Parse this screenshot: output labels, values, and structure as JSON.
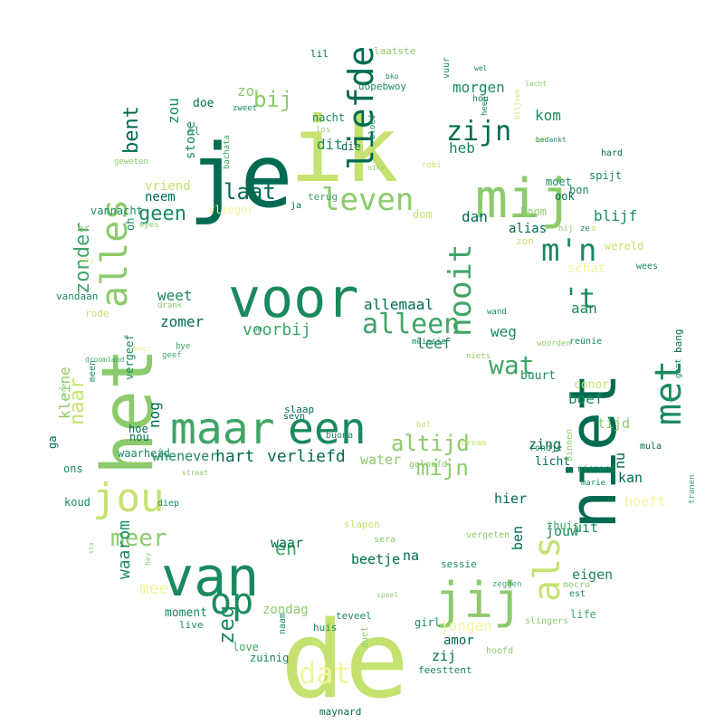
{
  "palette": {
    "darkest": "#006b51",
    "dark": "#1a8a5e",
    "mid": "#3fa567",
    "light": "#8ccb6c",
    "pale": "#c5e271",
    "palest": "#f0f59a"
  },
  "words": [
    {
      "text": "de",
      "color": "pale"
    },
    {
      "text": "ik",
      "color": "pale"
    },
    {
      "text": "je",
      "color": "darkest"
    },
    {
      "text": "het",
      "color": "light"
    },
    {
      "text": "niet",
      "color": "darkest"
    },
    {
      "text": "voor",
      "color": "dark"
    },
    {
      "text": "van",
      "color": "dark"
    },
    {
      "text": "mij",
      "color": "light"
    },
    {
      "text": "jij",
      "color": "light"
    },
    {
      "text": "een",
      "color": "dark"
    },
    {
      "text": "maar",
      "color": "mid"
    },
    {
      "text": "jou",
      "color": "pale"
    },
    {
      "text": "op",
      "color": "dark"
    },
    {
      "text": "alles",
      "color": "light"
    },
    {
      "text": "met",
      "color": "dark"
    },
    {
      "text": "als",
      "color": "pale"
    },
    {
      "text": "leven",
      "color": "light"
    },
    {
      "text": "liefde",
      "color": "darkest"
    },
    {
      "text": "zijn",
      "color": "darkest"
    },
    {
      "text": "m'n",
      "color": "dark"
    },
    {
      "text": "dat",
      "color": "palest"
    },
    {
      "text": "alleen",
      "color": "mid"
    },
    {
      "text": "nooit",
      "color": "mid"
    },
    {
      "text": "'t",
      "color": "dark"
    },
    {
      "text": "wat",
      "color": "mid"
    },
    {
      "text": "laat",
      "color": "darkest"
    },
    {
      "text": "mijn",
      "color": "light"
    },
    {
      "text": "altijd",
      "color": "light"
    },
    {
      "text": "meer",
      "color": "light"
    },
    {
      "text": "geen",
      "color": "dark"
    },
    {
      "text": "bent",
      "color": "darkest"
    },
    {
      "text": "bij",
      "color": "light"
    },
    {
      "text": "naar",
      "color": "pale"
    },
    {
      "text": "zonder",
      "color": "mid"
    },
    {
      "text": "zeg",
      "color": "dark"
    },
    {
      "text": "en",
      "color": "mid"
    },
    {
      "text": "mee",
      "color": "palest"
    },
    {
      "text": "hart",
      "color": "darkest"
    },
    {
      "text": "verliefd",
      "color": "darkest"
    },
    {
      "text": "voorbij",
      "color": "mid"
    },
    {
      "text": "jongen",
      "color": "palest"
    },
    {
      "text": "waarom",
      "color": "dark"
    },
    {
      "text": "dan",
      "color": "darkest"
    },
    {
      "text": "blijf",
      "color": "dark"
    },
    {
      "text": "heb",
      "color": "dark"
    },
    {
      "text": "dit",
      "color": "dark"
    },
    {
      "text": "zo",
      "color": "light"
    },
    {
      "text": "morgen",
      "color": "dark"
    },
    {
      "text": "kom",
      "color": "dark"
    },
    {
      "text": "weg",
      "color": "dark"
    },
    {
      "text": "leef",
      "color": "dark"
    },
    {
      "text": "boef",
      "color": "dark"
    },
    {
      "text": "aan",
      "color": "dark"
    },
    {
      "text": "allemaal",
      "color": "darkest"
    },
    {
      "text": "weet",
      "color": "dark"
    },
    {
      "text": "zomer",
      "color": "darkest"
    },
    {
      "text": "kleine",
      "color": "light"
    },
    {
      "text": "nog",
      "color": "darkest"
    },
    {
      "text": "whenever",
      "color": "dark"
    },
    {
      "text": "water",
      "color": "light"
    },
    {
      "text": "hier",
      "color": "darkest"
    },
    {
      "text": "ben",
      "color": "darkest"
    },
    {
      "text": "jouw",
      "color": "dark"
    },
    {
      "text": "uit",
      "color": "dark"
    },
    {
      "text": "eigen",
      "color": "dark"
    },
    {
      "text": "nu",
      "color": "darkest"
    },
    {
      "text": "tijd",
      "color": "light"
    },
    {
      "text": "zing",
      "color": "darkest"
    },
    {
      "text": "hoeft",
      "color": "palest"
    },
    {
      "text": "kan",
      "color": "darkest"
    },
    {
      "text": "na",
      "color": "darkest"
    },
    {
      "text": "waar",
      "color": "darkest"
    },
    {
      "text": "beetje",
      "color": "darkest"
    },
    {
      "text": "zij",
      "color": "darkest"
    },
    {
      "text": "amor",
      "color": "darkest"
    },
    {
      "text": "moment",
      "color": "dark"
    },
    {
      "text": "live",
      "color": "dark"
    },
    {
      "text": "love",
      "color": "mid"
    },
    {
      "text": "zuinig",
      "color": "dark"
    },
    {
      "text": "maynard",
      "color": "darkest"
    },
    {
      "text": "feesttent",
      "color": "dark"
    },
    {
      "text": "schat",
      "color": "palest"
    },
    {
      "text": "wereld",
      "color": "pale"
    },
    {
      "text": "alias",
      "color": "darkest"
    },
    {
      "text": "zon",
      "color": "pale"
    },
    {
      "text": "dom",
      "color": "pale"
    },
    {
      "text": "boom",
      "color": "light"
    },
    {
      "text": "moet",
      "color": "dark"
    },
    {
      "text": "ook",
      "color": "darkest"
    },
    {
      "text": "bon",
      "color": "dark"
    },
    {
      "text": "spijt",
      "color": "dark"
    },
    {
      "text": "hard",
      "color": "darkest"
    },
    {
      "text": "stone",
      "color": "dark"
    },
    {
      "text": "nacht",
      "color": "dark"
    },
    {
      "text": "neem",
      "color": "darkest"
    },
    {
      "text": "vriend",
      "color": "pale"
    },
    {
      "text": "vlieger",
      "color": "palest"
    },
    {
      "text": "vannacht",
      "color": "dark"
    },
    {
      "text": "doe",
      "color": "darkest"
    },
    {
      "text": "zou",
      "color": "dark"
    },
    {
      "text": "al",
      "color": "mid"
    },
    {
      "text": "die",
      "color": "darkest"
    },
    {
      "text": "terug",
      "color": "mid"
    },
    {
      "text": "ja",
      "color": "darkest"
    },
    {
      "text": "vandaan",
      "color": "dark"
    },
    {
      "text": "rode",
      "color": "pale"
    },
    {
      "text": "meen",
      "color": "dark"
    },
    {
      "text": "buurt",
      "color": "dark"
    },
    {
      "text": "conor",
      "color": "pale"
    },
    {
      "text": "licht",
      "color": "darkest"
    },
    {
      "text": "thuis",
      "color": "mid"
    },
    {
      "text": "sessie",
      "color": "dark"
    },
    {
      "text": "life",
      "color": "mid"
    },
    {
      "text": "teveel",
      "color": "dark"
    },
    {
      "text": "huis",
      "color": "dark"
    },
    {
      "text": "girl",
      "color": "dark"
    },
    {
      "text": "slapen",
      "color": "pale"
    },
    {
      "text": "waarheid",
      "color": "dark"
    },
    {
      "text": "slaap",
      "color": "darkest"
    },
    {
      "text": "vergeef",
      "color": "dark"
    },
    {
      "text": "koud",
      "color": "dark"
    },
    {
      "text": "ons",
      "color": "dark"
    },
    {
      "text": "ga",
      "color": "darkest"
    },
    {
      "text": "hoe",
      "color": "darkest"
    },
    {
      "text": "nou",
      "color": "darkest"
    },
    {
      "text": "lil",
      "color": "darkest"
    },
    {
      "text": "laatste",
      "color": "light"
    },
    {
      "text": "dopebwoy",
      "color": "dark"
    },
    {
      "text": "vuur",
      "color": "dark"
    },
    {
      "text": "hou",
      "color": "dark"
    },
    {
      "text": "wees",
      "color": "dark"
    },
    {
      "text": "mula",
      "color": "darkest"
    },
    {
      "text": "bang",
      "color": "darkest"
    },
    {
      "text": "tranen",
      "color": "mid"
    },
    {
      "text": "vergeten",
      "color": "light"
    },
    {
      "text": "naam",
      "color": "dark"
    },
    {
      "text": "duet",
      "color": "light"
    },
    {
      "text": "slingers",
      "color": "light"
    },
    {
      "text": "hoofd",
      "color": "light"
    },
    {
      "text": "est",
      "color": "dark"
    },
    {
      "text": "mocro",
      "color": "light"
    },
    {
      "text": "binnen",
      "color": "light"
    },
    {
      "text": "niemand",
      "color": "dark"
    },
    {
      "text": "marie",
      "color": "dark"
    },
    {
      "text": "rondje",
      "color": "dark"
    },
    {
      "text": "geloofd",
      "color": "light"
    },
    {
      "text": "buona",
      "color": "dark"
    },
    {
      "text": "sevn",
      "color": "darkest"
    },
    {
      "text": "bol",
      "color": "pale"
    },
    {
      "text": "dream",
      "color": "pale"
    },
    {
      "text": "sera",
      "color": "light"
    },
    {
      "text": "diep",
      "color": "dark"
    },
    {
      "text": "straat",
      "color": "light"
    },
    {
      "text": "reünie",
      "color": "dark"
    },
    {
      "text": "gaat",
      "color": "dark"
    },
    {
      "text": "woorden",
      "color": "light"
    },
    {
      "text": "niets",
      "color": "light"
    },
    {
      "text": "meissie",
      "color": "dark"
    },
    {
      "text": "wand",
      "color": "dark"
    },
    {
      "text": "geef",
      "color": "mid"
    },
    {
      "text": "door",
      "color": "palest"
    },
    {
      "text": "bye",
      "color": "mid"
    },
    {
      "text": "drank",
      "color": "light"
    },
    {
      "text": "geweten",
      "color": "light"
    },
    {
      "text": "bachata",
      "color": "mid"
    },
    {
      "text": "zweet",
      "color": "dark"
    },
    {
      "text": "los",
      "color": "light"
    },
    {
      "text": "bloed",
      "color": "dark"
    },
    {
      "text": "niks",
      "color": "light"
    },
    {
      "text": "robi",
      "color": "pale"
    },
    {
      "text": "heen",
      "color": "dark"
    },
    {
      "text": "zal",
      "color": "palest"
    },
    {
      "text": "blijven",
      "color": "pale"
    },
    {
      "text": "bedankt",
      "color": "dark"
    },
    {
      "text": "droomland",
      "color": "mid"
    },
    {
      "text": "say",
      "color": "palest"
    },
    {
      "text": "eyes",
      "color": "light"
    },
    {
      "text": "oh",
      "color": "dark"
    },
    {
      "text": "hij",
      "color": "light"
    },
    {
      "text": "ze",
      "color": "dark"
    },
    {
      "text": "b",
      "color": "pale"
    },
    {
      "text": "wel",
      "color": "dark"
    },
    {
      "text": "bko",
      "color": "dark"
    },
    {
      "text": "lacht",
      "color": "light"
    },
    {
      "text": "om",
      "color": "dark"
    },
    {
      "text": "ene",
      "color": "light"
    },
    {
      "text": "hey",
      "color": "light"
    },
    {
      "text": "sta",
      "color": "light"
    },
    {
      "text": "zeggen",
      "color": "mid"
    },
    {
      "text": "speel",
      "color": "light"
    },
    {
      "text": "zondag",
      "color": "light"
    },
    {
      "text": "er",
      "color": "light"
    },
    {
      "text": "wie",
      "color": "pale"
    },
    {
      "text": "'n",
      "color": "light"
    },
    {
      "text": "zeg",
      "color": "dark"
    }
  ]
}
